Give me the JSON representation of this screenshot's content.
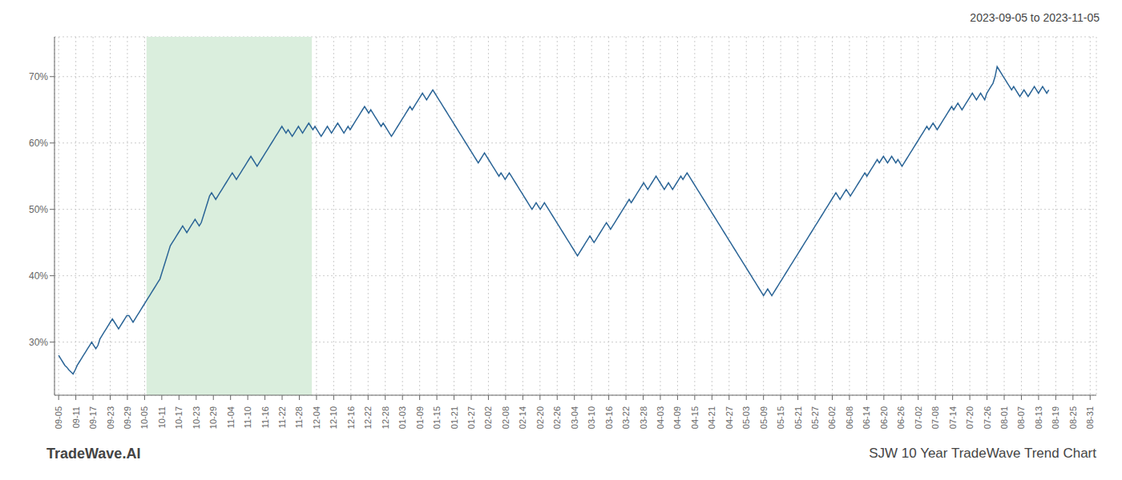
{
  "chart_data": {
    "type": "line",
    "title": "SJW 10 Year TradeWave Trend Chart",
    "subtitle": "2023-09-05 to 2023-11-05",
    "annotations": [
      "TradeWave.AI"
    ],
    "color": "#2a6496",
    "grid": true,
    "xlim": [
      -2,
      502
    ],
    "ylim": [
      22,
      76
    ],
    "yticks": [
      {
        "value": 30,
        "label": "30%"
      },
      {
        "value": 40,
        "label": "40%"
      },
      {
        "value": 50,
        "label": "50%"
      },
      {
        "value": 60,
        "label": "60%"
      },
      {
        "value": 70,
        "label": "70%"
      }
    ],
    "highlight": {
      "x": [
        42.5,
        122.5
      ],
      "color": "#daeedd"
    },
    "xticks": [
      {
        "value": 0,
        "label": "09-05"
      },
      {
        "value": 8.3167,
        "label": "09-11"
      },
      {
        "value": 16.6333,
        "label": "09-17"
      },
      {
        "value": 24.95,
        "label": "09-23"
      },
      {
        "value": 33.2667,
        "label": "09-29"
      },
      {
        "value": 41.5833,
        "label": "10-05"
      },
      {
        "value": 49.9,
        "label": "10-11"
      },
      {
        "value": 58.2167,
        "label": "10-17"
      },
      {
        "value": 66.5333,
        "label": "10-23"
      },
      {
        "value": 74.85,
        "label": "10-29"
      },
      {
        "value": 83.1667,
        "label": "11-04"
      },
      {
        "value": 91.4833,
        "label": "11-10"
      },
      {
        "value": 99.8,
        "label": "11-16"
      },
      {
        "value": 108.1167,
        "label": "11-22"
      },
      {
        "value": 116.4333,
        "label": "11-28"
      },
      {
        "value": 124.75,
        "label": "12-04"
      },
      {
        "value": 133.0667,
        "label": "12-10"
      },
      {
        "value": 141.3833,
        "label": "12-16"
      },
      {
        "value": 149.7,
        "label": "12-22"
      },
      {
        "value": 158.0167,
        "label": "12-28"
      },
      {
        "value": 166.3333,
        "label": "01-03"
      },
      {
        "value": 174.65,
        "label": "01-09"
      },
      {
        "value": 182.9667,
        "label": "01-15"
      },
      {
        "value": 191.2833,
        "label": "01-21"
      },
      {
        "value": 199.6,
        "label": "01-27"
      },
      {
        "value": 207.9167,
        "label": "02-02"
      },
      {
        "value": 216.2333,
        "label": "02-08"
      },
      {
        "value": 224.55,
        "label": "02-14"
      },
      {
        "value": 232.8667,
        "label": "02-20"
      },
      {
        "value": 241.1833,
        "label": "02-26"
      },
      {
        "value": 249.5,
        "label": "03-04"
      },
      {
        "value": 257.8167,
        "label": "03-10"
      },
      {
        "value": 266.1333,
        "label": "03-16"
      },
      {
        "value": 274.45,
        "label": "03-22"
      },
      {
        "value": 282.7667,
        "label": "03-28"
      },
      {
        "value": 291.0833,
        "label": "04-03"
      },
      {
        "value": 299.4,
        "label": "04-09"
      },
      {
        "value": 307.7167,
        "label": "04-15"
      },
      {
        "value": 316.0333,
        "label": "04-21"
      },
      {
        "value": 324.35,
        "label": "04-27"
      },
      {
        "value": 332.6667,
        "label": "05-03"
      },
      {
        "value": 340.9833,
        "label": "05-09"
      },
      {
        "value": 349.3,
        "label": "05-15"
      },
      {
        "value": 357.6167,
        "label": "05-21"
      },
      {
        "value": 365.9333,
        "label": "05-27"
      },
      {
        "value": 374.25,
        "label": "06-02"
      },
      {
        "value": 382.5667,
        "label": "06-08"
      },
      {
        "value": 390.8833,
        "label": "06-14"
      },
      {
        "value": 399.2,
        "label": "06-20"
      },
      {
        "value": 407.5167,
        "label": "06-26"
      },
      {
        "value": 415.8333,
        "label": "07-02"
      },
      {
        "value": 424.15,
        "label": "07-08"
      },
      {
        "value": 432.4667,
        "label": "07-14"
      },
      {
        "value": 440.7833,
        "label": "07-20"
      },
      {
        "value": 449.1,
        "label": "07-26"
      },
      {
        "value": 457.4167,
        "label": "08-01"
      },
      {
        "value": 465.7333,
        "label": "08-07"
      },
      {
        "value": 474.05,
        "label": "08-13"
      },
      {
        "value": 482.3667,
        "label": "08-19"
      },
      {
        "value": 490.6833,
        "label": "08-25"
      },
      {
        "value": 499,
        "label": "08-31"
      }
    ],
    "values": [
      28.0,
      27.5,
      27.0,
      26.5,
      26.2,
      25.8,
      25.5,
      25.2,
      25.8,
      26.5,
      27.0,
      27.5,
      28.0,
      28.5,
      29.0,
      29.5,
      30.0,
      29.5,
      29.0,
      29.5,
      30.5,
      31.0,
      31.5,
      32.0,
      32.5,
      33.0,
      33.5,
      33.0,
      32.5,
      32.0,
      32.5,
      33.0,
      33.5,
      34.0,
      34.0,
      33.5,
      33.0,
      33.5,
      34.0,
      34.5,
      35.0,
      35.5,
      36.0,
      36.5,
      37.0,
      37.5,
      38.0,
      38.5,
      39.0,
      39.5,
      40.5,
      41.5,
      42.5,
      43.5,
      44.5,
      45.0,
      45.5,
      46.0,
      46.5,
      47.0,
      47.5,
      47.0,
      46.5,
      47.0,
      47.5,
      48.0,
      48.5,
      48.0,
      47.5,
      48.0,
      49.0,
      50.0,
      51.0,
      52.0,
      52.5,
      52.0,
      51.5,
      52.0,
      52.5,
      53.0,
      53.5,
      54.0,
      54.5,
      55.0,
      55.5,
      55.0,
      54.5,
      55.0,
      55.5,
      56.0,
      56.5,
      57.0,
      57.5,
      58.0,
      57.5,
      57.0,
      56.5,
      57.0,
      57.5,
      58.0,
      58.5,
      59.0,
      59.5,
      60.0,
      60.5,
      61.0,
      61.5,
      62.0,
      62.5,
      62.0,
      61.5,
      62.0,
      61.5,
      61.0,
      61.5,
      62.0,
      62.5,
      62.0,
      61.5,
      62.0,
      62.5,
      63.0,
      62.5,
      62.0,
      62.5,
      62.0,
      61.5,
      61.0,
      61.5,
      62.0,
      62.5,
      62.0,
      61.5,
      62.0,
      62.5,
      63.0,
      62.5,
      62.0,
      61.5,
      62.0,
      62.5,
      62.0,
      62.5,
      63.0,
      63.5,
      64.0,
      64.5,
      65.0,
      65.5,
      65.0,
      64.5,
      65.0,
      64.5,
      64.0,
      63.5,
      63.0,
      62.5,
      63.0,
      62.5,
      62.0,
      61.5,
      61.0,
      61.5,
      62.0,
      62.5,
      63.0,
      63.5,
      64.0,
      64.5,
      65.0,
      65.5,
      65.0,
      65.5,
      66.0,
      66.5,
      67.0,
      67.5,
      67.0,
      66.5,
      67.0,
      67.5,
      68.0,
      67.5,
      67.0,
      66.5,
      66.0,
      65.5,
      65.0,
      64.5,
      64.0,
      63.5,
      63.0,
      62.5,
      62.0,
      61.5,
      61.0,
      60.5,
      60.0,
      59.5,
      59.0,
      58.5,
      58.0,
      57.5,
      57.0,
      57.5,
      58.0,
      58.5,
      58.0,
      57.5,
      57.0,
      56.5,
      56.0,
      55.5,
      55.0,
      55.5,
      55.0,
      54.5,
      55.0,
      55.5,
      55.0,
      54.5,
      54.0,
      53.5,
      53.0,
      52.5,
      52.0,
      51.5,
      51.0,
      50.5,
      50.0,
      50.5,
      51.0,
      50.5,
      50.0,
      50.5,
      51.0,
      50.5,
      50.0,
      49.5,
      49.0,
      48.5,
      48.0,
      47.5,
      47.0,
      46.5,
      46.0,
      45.5,
      45.0,
      44.5,
      44.0,
      43.5,
      43.0,
      43.5,
      44.0,
      44.5,
      45.0,
      45.5,
      46.0,
      45.5,
      45.0,
      45.5,
      46.0,
      46.5,
      47.0,
      47.5,
      48.0,
      47.5,
      47.0,
      47.5,
      48.0,
      48.5,
      49.0,
      49.5,
      50.0,
      50.5,
      51.0,
      51.5,
      51.0,
      51.5,
      52.0,
      52.5,
      53.0,
      53.5,
      54.0,
      53.5,
      53.0,
      53.5,
      54.0,
      54.5,
      55.0,
      54.5,
      54.0,
      53.5,
      53.0,
      53.5,
      54.0,
      53.5,
      53.0,
      53.5,
      54.0,
      54.5,
      55.0,
      54.5,
      55.0,
      55.5,
      55.0,
      54.5,
      54.0,
      53.5,
      53.0,
      52.5,
      52.0,
      51.5,
      51.0,
      50.5,
      50.0,
      49.5,
      49.0,
      48.5,
      48.0,
      47.5,
      47.0,
      46.5,
      46.0,
      45.5,
      45.0,
      44.5,
      44.0,
      43.5,
      43.0,
      42.5,
      42.0,
      41.5,
      41.0,
      40.5,
      40.0,
      39.5,
      39.0,
      38.5,
      38.0,
      37.5,
      37.0,
      37.5,
      38.0,
      37.5,
      37.0,
      37.5,
      38.0,
      38.5,
      39.0,
      39.5,
      40.0,
      40.5,
      41.0,
      41.5,
      42.0,
      42.5,
      43.0,
      43.5,
      44.0,
      44.5,
      45.0,
      45.5,
      46.0,
      46.5,
      47.0,
      47.5,
      48.0,
      48.5,
      49.0,
      49.5,
      50.0,
      50.5,
      51.0,
      51.5,
      52.0,
      52.5,
      52.0,
      51.5,
      52.0,
      52.5,
      53.0,
      52.5,
      52.0,
      52.5,
      53.0,
      53.5,
      54.0,
      54.5,
      55.0,
      55.5,
      55.0,
      55.5,
      56.0,
      56.5,
      57.0,
      57.5,
      57.0,
      57.5,
      58.0,
      57.5,
      57.0,
      57.5,
      58.0,
      57.5,
      57.0,
      57.5,
      57.0,
      56.5,
      57.0,
      57.5,
      58.0,
      58.5,
      59.0,
      59.5,
      60.0,
      60.5,
      61.0,
      61.5,
      62.0,
      62.5,
      62.0,
      62.5,
      63.0,
      62.5,
      62.0,
      62.5,
      63.0,
      63.5,
      64.0,
      64.5,
      65.0,
      65.5,
      65.0,
      65.5,
      66.0,
      65.5,
      65.0,
      65.5,
      66.0,
      66.5,
      67.0,
      67.5,
      67.0,
      66.5,
      67.0,
      67.5,
      67.0,
      66.5,
      67.5,
      68.0,
      68.5,
      69.0,
      70.0,
      71.5,
      71.0,
      70.5,
      70.0,
      69.5,
      69.0,
      68.5,
      68.0,
      68.5,
      68.0,
      67.5,
      67.0,
      67.5,
      68.0,
      67.5,
      67.0,
      67.5,
      68.0,
      68.5,
      68.0,
      67.5,
      68.0,
      68.5,
      68.0,
      67.5,
      68.0
    ]
  }
}
